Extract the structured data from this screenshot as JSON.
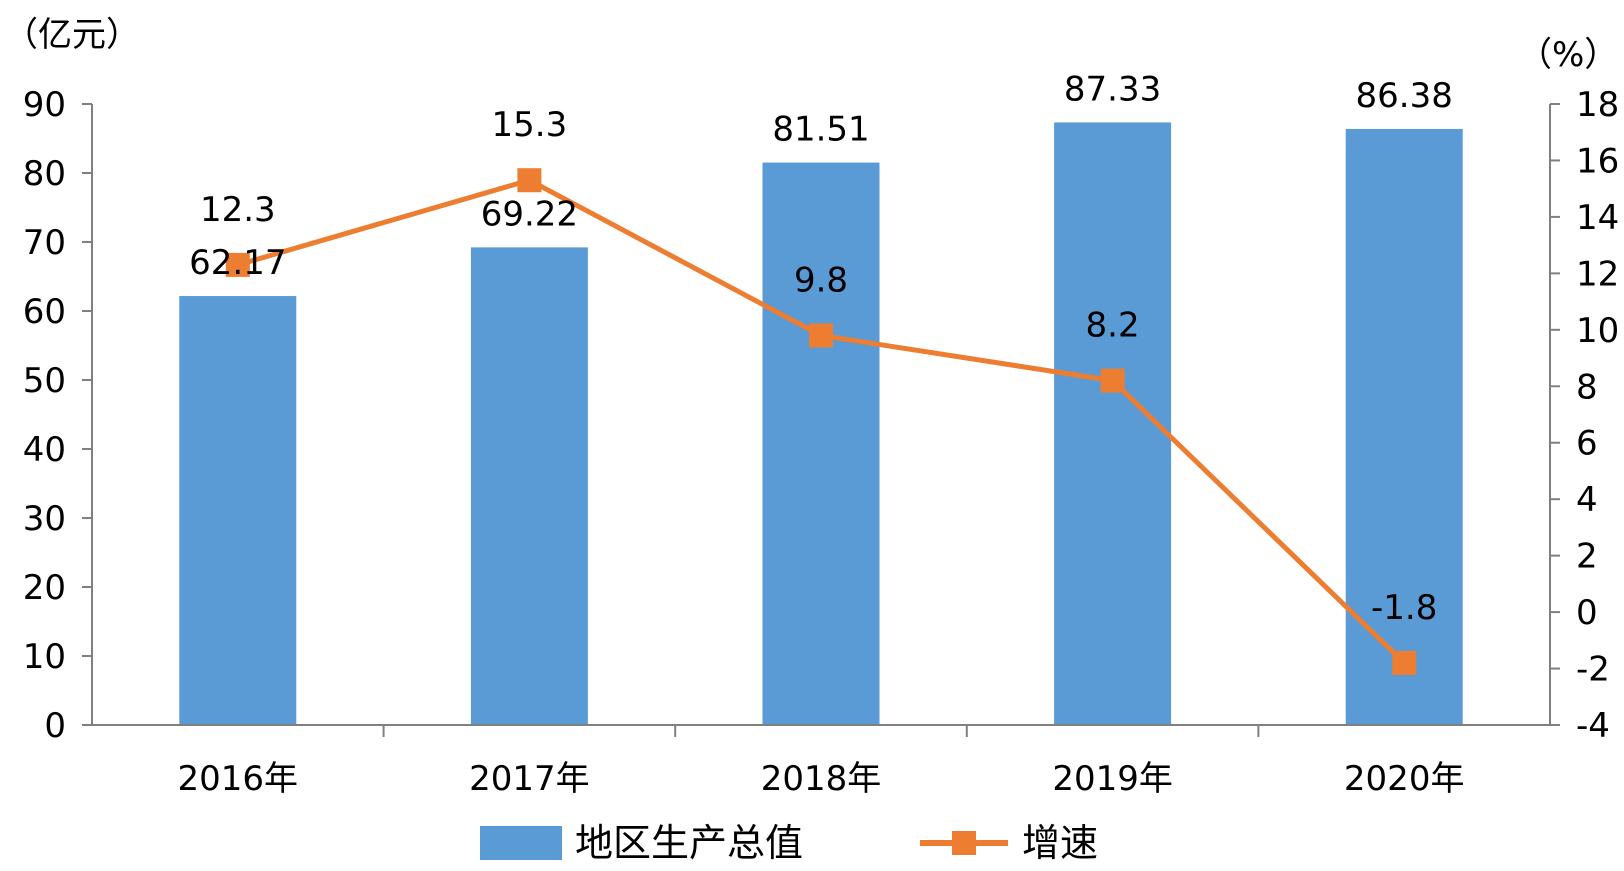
{
  "chart_data": {
    "type": "bar",
    "categories": [
      "2016年",
      "2017年",
      "2018年",
      "2019年",
      "2020年"
    ],
    "series": [
      {
        "name": "地区生产总值",
        "type": "bar",
        "axis": "left",
        "color": "#5B9BD5",
        "values": [
          62.17,
          69.22,
          81.51,
          87.33,
          86.38
        ],
        "labels": [
          "62.17",
          "69.22",
          "81.51",
          "87.33",
          "86.38"
        ]
      },
      {
        "name": "增速",
        "type": "line",
        "axis": "right",
        "color": "#ED7D31",
        "marker": "square",
        "values": [
          12.3,
          15.3,
          9.8,
          8.2,
          -1.8
        ],
        "labels": [
          "12.3",
          "15.3",
          "9.8",
          "8.2",
          "-1.8"
        ]
      }
    ],
    "y_left": {
      "unit_label": "（亿元）",
      "range": [
        0,
        90
      ],
      "ticks": [
        "0",
        "10",
        "20",
        "30",
        "40",
        "50",
        "60",
        "70",
        "80",
        "90"
      ]
    },
    "y_right": {
      "unit_label": "（%）",
      "range": [
        -4,
        18
      ],
      "ticks": [
        "-4",
        "-2",
        "0",
        "2",
        "4",
        "6",
        "8",
        "10",
        "12",
        "14",
        "16",
        "18"
      ]
    },
    "grid": false,
    "legend_position": "bottom"
  }
}
